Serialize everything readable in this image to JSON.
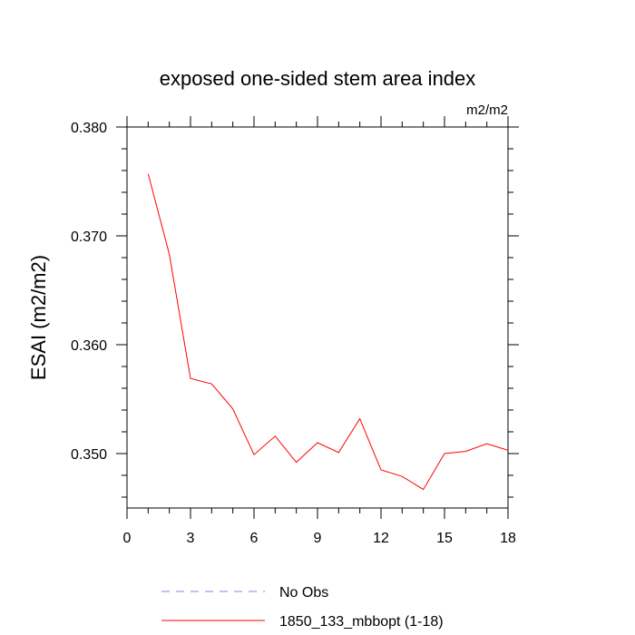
{
  "chart_data": {
    "type": "line",
    "title": "exposed one-sided stem area index",
    "units_label": "m2/m2",
    "xlabel": "",
    "ylabel": "ESAI  (m2/m2)",
    "xlim": [
      0,
      18
    ],
    "ylim": [
      0.345,
      0.38
    ],
    "x_ticks": [
      0,
      3,
      6,
      9,
      12,
      15,
      18
    ],
    "x_tick_labels": [
      "0",
      "3",
      "6",
      "9",
      "12",
      "15",
      "18"
    ],
    "y_ticks": [
      0.35,
      0.36,
      0.37,
      0.38
    ],
    "y_tick_labels": [
      "0.350",
      "0.360",
      "0.370",
      "0.380"
    ],
    "grid": false,
    "legend_position": "bottom",
    "legend": [
      {
        "label": "No Obs",
        "color": "#8080ff",
        "style": "dashed"
      },
      {
        "label": "1850_133_mbbopt (1-18)",
        "color": "#ff0000",
        "style": "solid"
      }
    ],
    "series": [
      {
        "name": "1850_133_mbbopt (1-18)",
        "color": "#ff0000",
        "x": [
          1,
          2,
          3,
          4,
          5,
          6,
          7,
          8,
          9,
          10,
          11,
          12,
          13,
          14,
          15,
          16,
          17,
          18
        ],
        "values": [
          0.3757,
          0.3683,
          0.3569,
          0.3564,
          0.3541,
          0.3499,
          0.3516,
          0.3492,
          0.351,
          0.3501,
          0.3532,
          0.3485,
          0.3479,
          0.3467,
          0.35,
          0.3502,
          0.3509,
          0.3503
        ]
      }
    ]
  }
}
